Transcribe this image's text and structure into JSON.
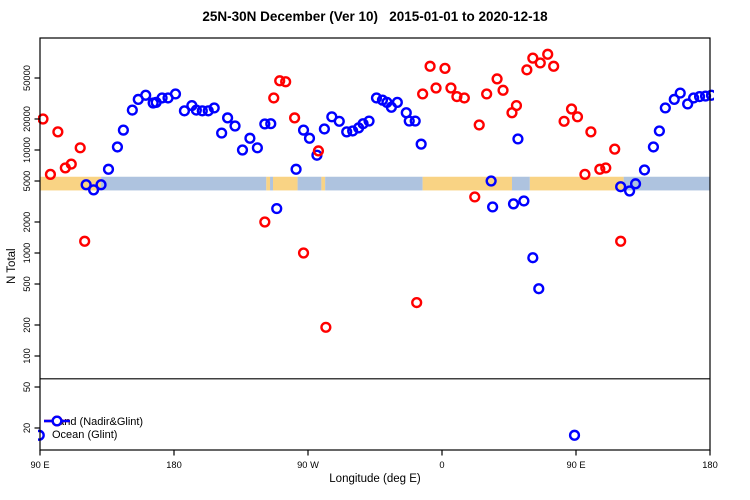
{
  "title": "25N-30N December (Ver 10)   2015-01-01 to 2020-12-18",
  "chart_data": {
    "type": "scatter",
    "title": "25N-30N December (Ver 10)   2015-01-01 to 2020-12-18",
    "xlabel": "Longitude (deg E)",
    "ylabel": "N Total",
    "x_axis": {
      "range_deg_east": [
        90,
        540
      ],
      "ticks": [
        {
          "value": 90,
          "label": "90 E"
        },
        {
          "value": 180,
          "label": "180"
        },
        {
          "value": 270,
          "label": "90 W"
        },
        {
          "value": 360,
          "label": "0"
        },
        {
          "value": 450,
          "label": "90 E"
        },
        {
          "value": 540,
          "label": "180"
        }
      ]
    },
    "y_axis": {
      "scale": "log10",
      "ticks": [
        20,
        50,
        100,
        200,
        500,
        1000,
        2000,
        5000,
        10000,
        20000,
        50000
      ]
    },
    "threshold_line_n": 60,
    "legend": [
      {
        "label": "Land (Nadir&Glint)",
        "color": "#ff0000"
      },
      {
        "label": "Ocean (Glint)",
        "color": "#0000ff"
      }
    ],
    "band": {
      "description": "land/ocean strip along longitude",
      "n_top": 5500,
      "n_bottom": 4050,
      "land_color": "#f9d384",
      "ocean_color": "#aec3df",
      "segments": [
        [
          90,
          131,
          "land"
        ],
        [
          131,
          242,
          "ocean"
        ],
        [
          242,
          244.5,
          "land"
        ],
        [
          244.5,
          246.5,
          "ocean"
        ],
        [
          246.5,
          263,
          "land"
        ],
        [
          263,
          279,
          "ocean"
        ],
        [
          279,
          281.5,
          "land"
        ],
        [
          281.5,
          347,
          "ocean"
        ],
        [
          347,
          407,
          "land"
        ],
        [
          407,
          419,
          "ocean"
        ],
        [
          419,
          482,
          "land"
        ],
        [
          482,
          540,
          "ocean"
        ]
      ]
    },
    "series": [
      {
        "name": "Land (Nadir&Glint)",
        "color": "#ff0000",
        "points": [
          [
            92,
            20000
          ],
          [
            102,
            15000
          ],
          [
            117,
            10500
          ],
          [
            97,
            5800
          ],
          [
            107,
            6700
          ],
          [
            111,
            7300
          ],
          [
            120,
            1300
          ],
          [
            241,
            2000
          ],
          [
            247,
            32000
          ],
          [
            251,
            47000
          ],
          [
            255,
            46000
          ],
          [
            261,
            20500
          ],
          [
            267,
            1000
          ],
          [
            277,
            9800
          ],
          [
            282,
            190
          ],
          [
            343,
            330
          ],
          [
            347,
            35000
          ],
          [
            352,
            65000
          ],
          [
            356,
            40000
          ],
          [
            362,
            62000
          ],
          [
            366,
            40000
          ],
          [
            370,
            33000
          ],
          [
            375,
            32000
          ],
          [
            382,
            3500
          ],
          [
            385,
            17500
          ],
          [
            390,
            35000
          ],
          [
            397,
            49000
          ],
          [
            401,
            38000
          ],
          [
            407,
            23000
          ],
          [
            410,
            27000
          ],
          [
            417,
            60000
          ],
          [
            421,
            78000
          ],
          [
            426,
            70000
          ],
          [
            431,
            85000
          ],
          [
            435,
            65000
          ],
          [
            442,
            19000
          ],
          [
            447,
            25000
          ],
          [
            451,
            21000
          ],
          [
            456,
            5800
          ],
          [
            460,
            15000
          ],
          [
            466,
            6500
          ],
          [
            470,
            6700
          ],
          [
            476,
            10200
          ],
          [
            480,
            1300
          ]
        ]
      },
      {
        "name": "Ocean (Glint)",
        "color": "#0000ff",
        "points": [
          [
            89.5,
            17
          ],
          [
            121,
            4600
          ],
          [
            126,
            4100
          ],
          [
            131,
            4600
          ],
          [
            136,
            6500
          ],
          [
            142,
            10700
          ],
          [
            146,
            15600
          ],
          [
            152,
            24400
          ],
          [
            156,
            31000
          ],
          [
            161,
            34000
          ],
          [
            166,
            28600
          ],
          [
            168,
            29000
          ],
          [
            172,
            32000
          ],
          [
            176,
            32000
          ],
          [
            181,
            35000
          ],
          [
            187,
            24000
          ],
          [
            192,
            27000
          ],
          [
            195,
            24400
          ],
          [
            199,
            24000
          ],
          [
            203,
            24000
          ],
          [
            207,
            25600
          ],
          [
            212,
            14600
          ],
          [
            216,
            20500
          ],
          [
            221,
            17100
          ],
          [
            226,
            10000
          ],
          [
            231,
            13000
          ],
          [
            236,
            10500
          ],
          [
            241,
            17900
          ],
          [
            245,
            18000
          ],
          [
            249,
            2700
          ],
          [
            262,
            6500
          ],
          [
            267,
            15600
          ],
          [
            271,
            13000
          ],
          [
            276,
            8900
          ],
          [
            281,
            16000
          ],
          [
            286,
            21000
          ],
          [
            291,
            19000
          ],
          [
            296,
            15000
          ],
          [
            300,
            15300
          ],
          [
            304,
            16400
          ],
          [
            307,
            18000
          ],
          [
            311,
            19100
          ],
          [
            316,
            32000
          ],
          [
            320,
            30500
          ],
          [
            323,
            29000
          ],
          [
            326,
            26000
          ],
          [
            330,
            29000
          ],
          [
            336,
            23000
          ],
          [
            338,
            19100
          ],
          [
            342,
            19100
          ],
          [
            346,
            11400
          ],
          [
            393,
            5000
          ],
          [
            394,
            2800
          ],
          [
            408,
            3000
          ],
          [
            415,
            3200
          ],
          [
            411,
            12800
          ],
          [
            421,
            900
          ],
          [
            425,
            450
          ],
          [
            449,
            17
          ],
          [
            480,
            4400
          ],
          [
            486,
            4000
          ],
          [
            490,
            4700
          ],
          [
            496,
            6400
          ],
          [
            502,
            10700
          ],
          [
            506,
            15300
          ],
          [
            510,
            25600
          ],
          [
            516,
            31000
          ],
          [
            520,
            35700
          ],
          [
            525,
            28000
          ],
          [
            529,
            32000
          ],
          [
            533,
            33000
          ],
          [
            537,
            33400
          ],
          [
            541,
            34000
          ]
        ]
      }
    ]
  }
}
